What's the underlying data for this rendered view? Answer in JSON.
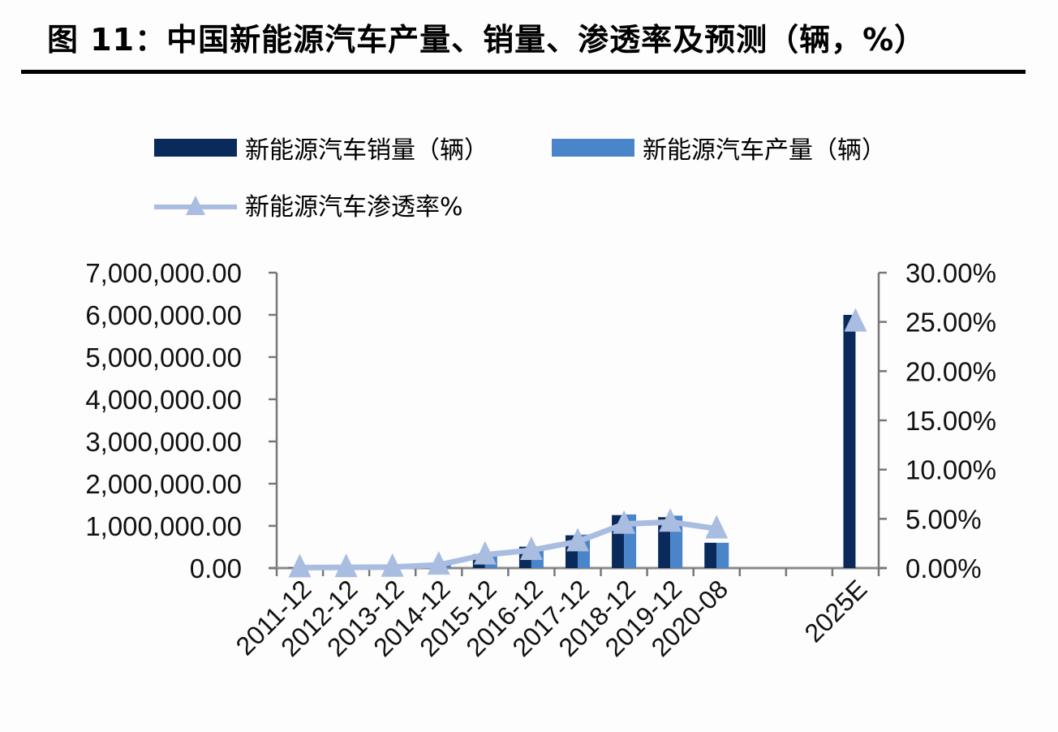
{
  "title": "图 11：中国新能源汽车产量、销量、渗透率及预测（辆，%）",
  "legend": {
    "sales": "新能源汽车销量（辆）",
    "production": "新能源汽车产量（辆）",
    "penetration": "新能源汽车渗透率%"
  },
  "colors": {
    "sales": "#0b2a5c",
    "production": "#4a84c9",
    "penetration": "#a9bde0",
    "axis": "#777777"
  },
  "chart_data": {
    "type": "bar",
    "title": "中国新能源汽车产量、销量、渗透率及预测（辆，%）",
    "categories": [
      "2011-12",
      "2012-12",
      "2013-12",
      "2014-12",
      "2015-12",
      "2016-12",
      "2017-12",
      "2018-12",
      "2019-12",
      "2020-08",
      "",
      "",
      "2025E"
    ],
    "series": [
      {
        "name": "新能源汽车销量（辆）",
        "type": "bar",
        "axis": "left",
        "values": [
          8000,
          13000,
          18000,
          75000,
          330000,
          507000,
          777000,
          1256000,
          1206000,
          600000,
          null,
          null,
          6000000
        ]
      },
      {
        "name": "新能源汽车产量（辆）",
        "type": "bar",
        "axis": "left",
        "values": [
          8000,
          13000,
          18000,
          78000,
          340000,
          517000,
          794000,
          1270000,
          1242000,
          600000,
          null,
          null,
          null
        ]
      },
      {
        "name": "新能源汽车渗透率%",
        "type": "line",
        "axis": "right",
        "marker": "triangle",
        "values": [
          0.05,
          0.07,
          0.1,
          0.32,
          1.35,
          1.81,
          2.69,
          4.47,
          4.68,
          4.0,
          null,
          null,
          25.0
        ]
      }
    ],
    "left_axis": {
      "ylim": [
        0,
        7000000
      ],
      "ticks": [
        "0.00",
        "1,000,000.00",
        "2,000,000.00",
        "3,000,000.00",
        "4,000,000.00",
        "5,000,000.00",
        "6,000,000.00",
        "7,000,000.00"
      ]
    },
    "right_axis": {
      "ylim": [
        0,
        30
      ],
      "ticks": [
        "0.00%",
        "5.00%",
        "10.00%",
        "15.00%",
        "20.00%",
        "25.00%",
        "30.00%"
      ]
    },
    "xlabel": "",
    "ylabel": "",
    "grid": false,
    "legend_position": "top"
  }
}
